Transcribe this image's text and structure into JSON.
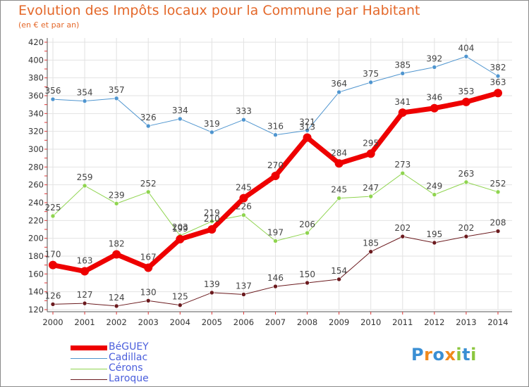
{
  "title": "Evolution des Impôts locaux pour la Commune par Habitant",
  "subtitle": "(en € et par an)",
  "chart_data": {
    "type": "line",
    "x": [
      "2000",
      "2001",
      "2002",
      "2003",
      "2004",
      "2005",
      "2006",
      "2007",
      "2008",
      "2009",
      "2010",
      "2011",
      "2012",
      "2013",
      "2014"
    ],
    "ylim": [
      120,
      420
    ],
    "yticks": [
      120,
      140,
      160,
      180,
      200,
      220,
      240,
      260,
      280,
      300,
      320,
      340,
      360,
      380,
      400,
      420
    ],
    "grid": true,
    "legend_position": "bottom-left",
    "series": [
      {
        "name": "Cadillac",
        "color": "#4f95cf",
        "width": 1,
        "values": [
          356,
          354,
          357,
          326,
          334,
          319,
          333,
          316,
          321,
          364,
          375,
          385,
          392,
          404,
          382
        ]
      },
      {
        "name": "Cérons",
        "color": "#8fd44f",
        "width": 1,
        "values": [
          225,
          259,
          239,
          252,
          203,
          219,
          226,
          197,
          206,
          245,
          247,
          273,
          249,
          263,
          252
        ]
      },
      {
        "name": "Laroque",
        "color": "#6b1a1e",
        "width": 1,
        "values": [
          126,
          127,
          124,
          130,
          125,
          139,
          137,
          146,
          150,
          154,
          185,
          202,
          195,
          202,
          208
        ]
      },
      {
        "name": "BéGUEY",
        "color": "#ee0000",
        "width": 7,
        "values": [
          170,
          163,
          182,
          167,
          199,
          210,
          245,
          270,
          313,
          284,
          295,
          341,
          346,
          353,
          363
        ]
      }
    ]
  },
  "legend": [
    {
      "label": "BéGUEY",
      "color": "#ee0000",
      "width": 7
    },
    {
      "label": "Cadillac",
      "color": "#4f95cf",
      "width": 1
    },
    {
      "label": "Cérons",
      "color": "#8fd44f",
      "width": 1
    },
    {
      "label": "Laroque",
      "color": "#6b1a1e",
      "width": 1
    }
  ],
  "logo": {
    "text": "Proxiti",
    "letters": [
      {
        "ch": "P",
        "color": "#3a8fd4"
      },
      {
        "ch": "r",
        "color": "#f08a1c"
      },
      {
        "ch": "o",
        "color": "#3a8fd4"
      },
      {
        "ch": "x",
        "color": "#f08a1c"
      },
      {
        "ch": "i",
        "color": "#8cc63e"
      },
      {
        "ch": "t",
        "color": "#3a8fd4"
      },
      {
        "ch": "i",
        "color": "#8cc63e"
      }
    ]
  }
}
